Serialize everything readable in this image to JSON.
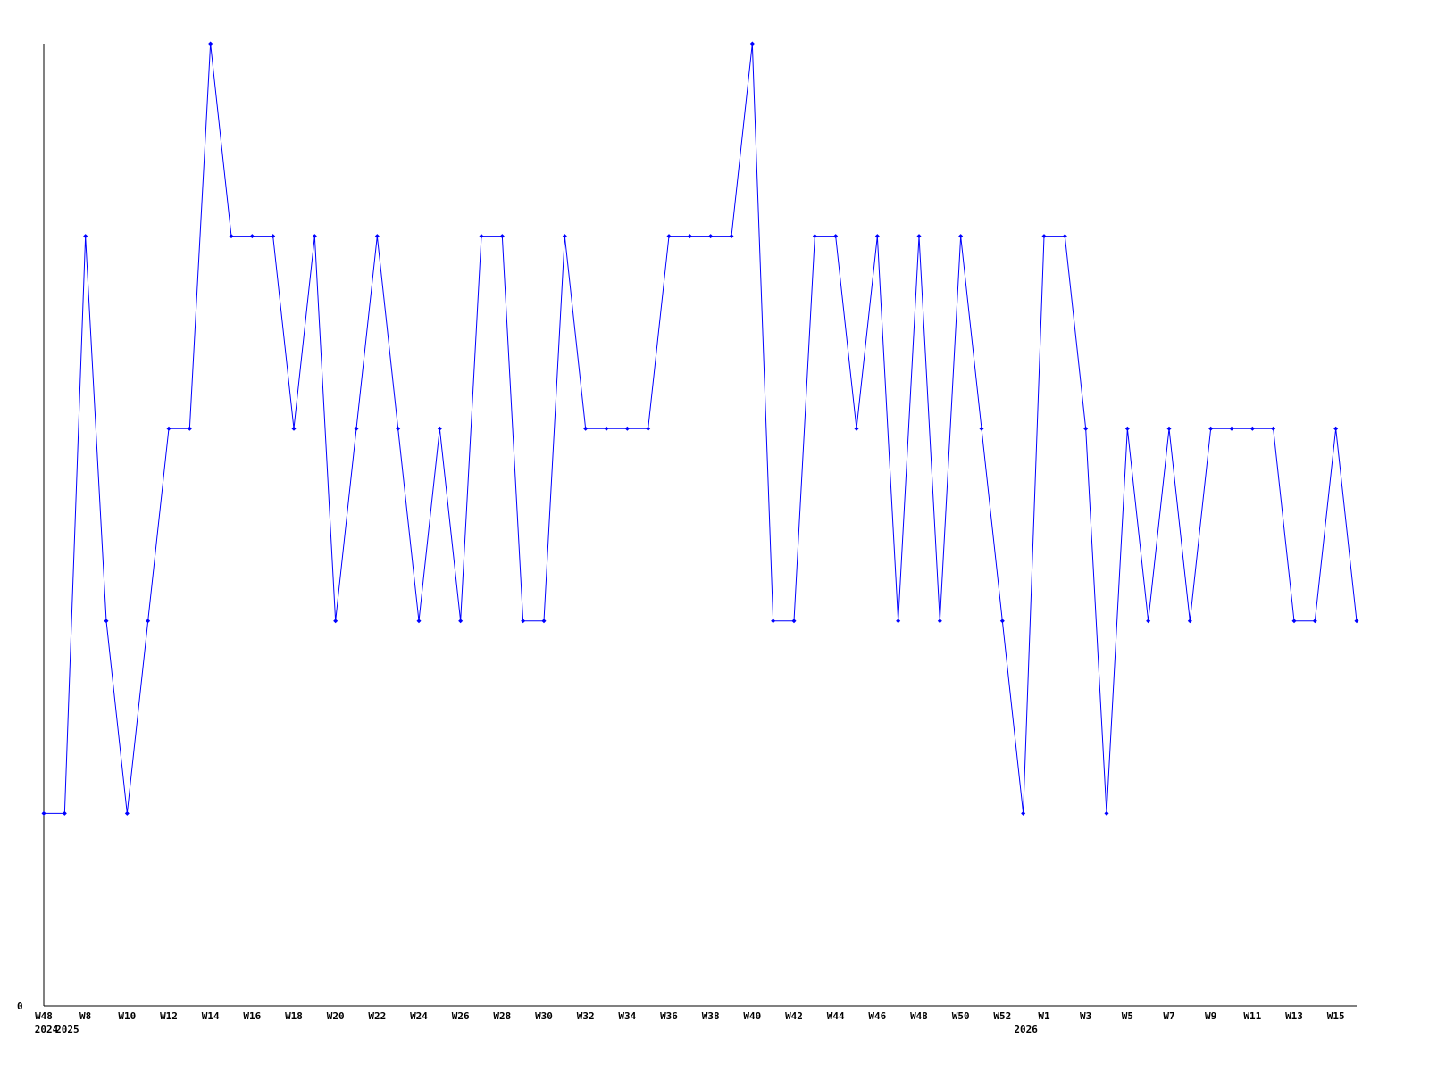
{
  "chart_data": {
    "type": "line",
    "title": "",
    "xlabel": "",
    "ylabel": "",
    "ylim": [
      0,
      5
    ],
    "y_tick_labels": [
      "0"
    ],
    "grid": false,
    "line_color": "#0000ff",
    "x": [
      "2024-W48",
      "2025-W7",
      "2025-W8",
      "2025-W9",
      "2025-W10",
      "2025-W11",
      "2025-W12",
      "2025-W13",
      "2025-W14",
      "2025-W15",
      "2025-W16",
      "2025-W17",
      "2025-W18",
      "2025-W19",
      "2025-W20",
      "2025-W21",
      "2025-W22",
      "2025-W23",
      "2025-W24",
      "2025-W25",
      "2025-W26",
      "2025-W27",
      "2025-W28",
      "2025-W29",
      "2025-W30",
      "2025-W31",
      "2025-W32",
      "2025-W33",
      "2025-W34",
      "2025-W35",
      "2025-W36",
      "2025-W37",
      "2025-W38",
      "2025-W39",
      "2025-W40",
      "2025-W41",
      "2025-W42",
      "2025-W43",
      "2025-W44",
      "2025-W45",
      "2025-W46",
      "2025-W47",
      "2025-W48",
      "2025-W49",
      "2025-W50",
      "2025-W51",
      "2025-W52",
      "2026",
      "2026-W1",
      "2026-W2",
      "2026-W3",
      "2026-W4",
      "2026-W5",
      "2026-W6",
      "2026-W7",
      "2026-W8",
      "2026-W9",
      "2026-W10",
      "2026-W11",
      "2026-W12",
      "2026-W13",
      "2026-W14",
      "2026-W15",
      "2026-W16"
    ],
    "values": [
      1,
      1,
      4,
      2,
      1,
      2,
      3,
      3,
      5,
      4,
      4,
      4,
      3,
      4,
      2,
      3,
      4,
      3,
      2,
      3,
      2,
      4,
      4,
      2,
      2,
      4,
      3,
      3,
      3,
      3,
      4,
      4,
      4,
      4,
      5,
      2,
      2,
      4,
      4,
      3,
      4,
      2,
      4,
      2,
      4,
      3,
      2,
      1,
      4,
      4,
      3,
      1,
      3,
      2,
      3,
      2,
      3,
      3,
      3,
      3,
      2,
      2,
      3,
      2
    ],
    "x_ticks": [
      {
        "label": "W48",
        "at": "2024-W48"
      },
      {
        "label": "W8",
        "at": "2025-W8"
      },
      {
        "label": "W10",
        "at": "2025-W10"
      },
      {
        "label": "W12",
        "at": "2025-W12"
      },
      {
        "label": "W14",
        "at": "2025-W14"
      },
      {
        "label": "W16",
        "at": "2025-W16"
      },
      {
        "label": "W18",
        "at": "2025-W18"
      },
      {
        "label": "W20",
        "at": "2025-W20"
      },
      {
        "label": "W22",
        "at": "2025-W22"
      },
      {
        "label": "W24",
        "at": "2025-W24"
      },
      {
        "label": "W26",
        "at": "2025-W26"
      },
      {
        "label": "W28",
        "at": "2025-W28"
      },
      {
        "label": "W30",
        "at": "2025-W30"
      },
      {
        "label": "W32",
        "at": "2025-W32"
      },
      {
        "label": "W34",
        "at": "2025-W34"
      },
      {
        "label": "W36",
        "at": "2025-W36"
      },
      {
        "label": "W38",
        "at": "2025-W38"
      },
      {
        "label": "W40",
        "at": "2025-W40"
      },
      {
        "label": "W42",
        "at": "2025-W42"
      },
      {
        "label": "W44",
        "at": "2025-W44"
      },
      {
        "label": "W46",
        "at": "2025-W46"
      },
      {
        "label": "W48",
        "at": "2025-W48"
      },
      {
        "label": "W50",
        "at": "2025-W50"
      },
      {
        "label": "W52",
        "at": "2025-W52"
      },
      {
        "label": "W1",
        "at": "2026-W1"
      },
      {
        "label": "W3",
        "at": "2026-W3"
      },
      {
        "label": "W5",
        "at": "2026-W5"
      },
      {
        "label": "W7",
        "at": "2026-W7"
      },
      {
        "label": "W9",
        "at": "2026-W9"
      },
      {
        "label": "W11",
        "at": "2026-W11"
      },
      {
        "label": "W13",
        "at": "2026-W13"
      },
      {
        "label": "W15",
        "at": "2026-W15"
      }
    ],
    "year_labels": [
      {
        "label": "2024",
        "at": "2024-W48"
      },
      {
        "label": "2025",
        "at": "2025-W7"
      },
      {
        "label": "2026",
        "at": "2026"
      }
    ]
  }
}
